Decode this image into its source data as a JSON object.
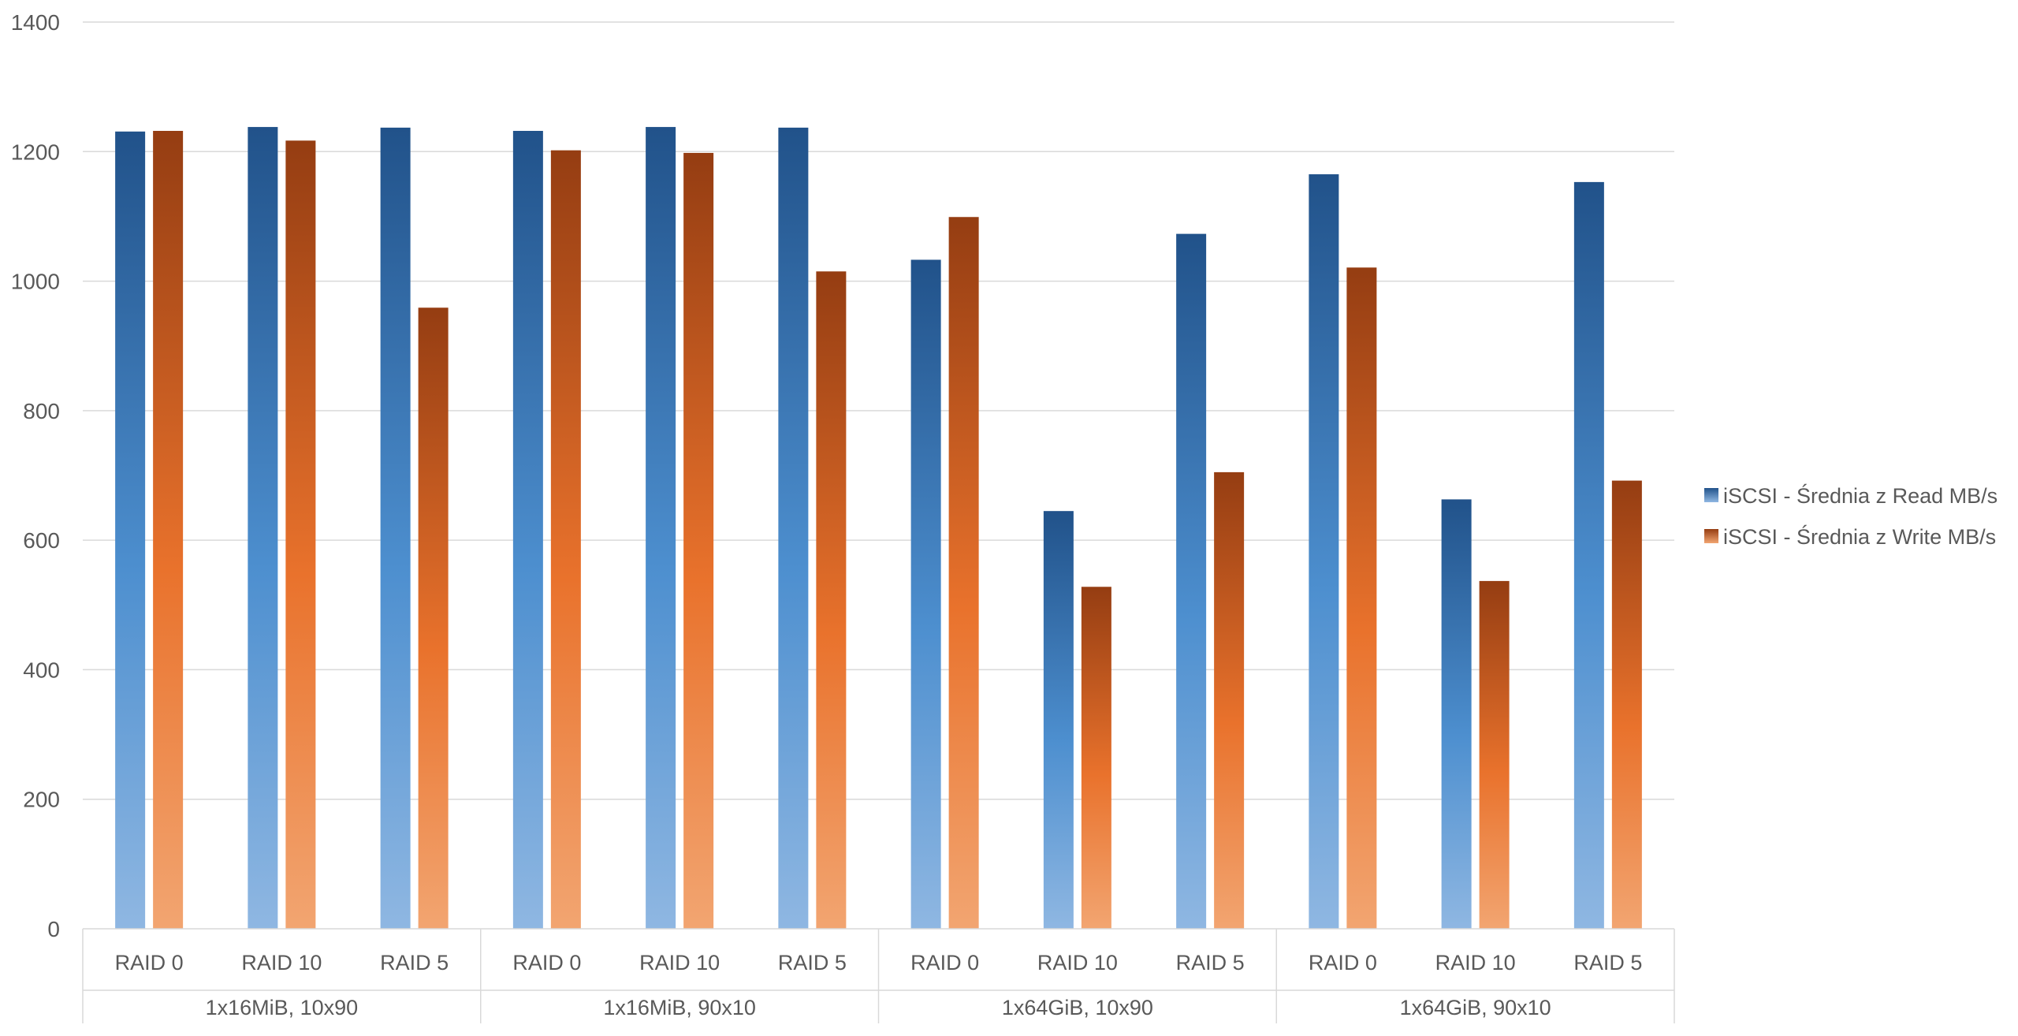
{
  "chart_data": {
    "type": "bar",
    "ylim": [
      0,
      1400
    ],
    "y_ticks": [
      0,
      200,
      400,
      600,
      800,
      1000,
      1200,
      1400
    ],
    "grid": true,
    "legend_position": "right",
    "categories": [
      "RAID 0",
      "RAID 10",
      "RAID 5",
      "RAID 0",
      "RAID 10",
      "RAID 5",
      "RAID 0",
      "RAID 10",
      "RAID 5",
      "RAID 0",
      "RAID 10",
      "RAID 5"
    ],
    "groups": [
      {
        "label": "1x16MiB, 10x90",
        "categories": [
          "RAID 0",
          "RAID 10",
          "RAID 5"
        ]
      },
      {
        "label": "1x16MiB, 90x10",
        "categories": [
          "RAID 0",
          "RAID 10",
          "RAID 5"
        ]
      },
      {
        "label": "1x64GiB, 10x90",
        "categories": [
          "RAID 0",
          "RAID 10",
          "RAID 5"
        ]
      },
      {
        "label": "1x64GiB, 90x10",
        "categories": [
          "RAID 0",
          "RAID 10",
          "RAID 5"
        ]
      }
    ],
    "series": [
      {
        "name": "iSCSI - Średnia z Read MB/s",
        "color_top": "#21528a",
        "color_mid": "#4d8fcf",
        "color_bottom": "#8fb7e2",
        "values": [
          1231,
          1238,
          1237,
          1232,
          1238,
          1237,
          1033,
          645,
          1073,
          1165,
          663,
          1153
        ]
      },
      {
        "name": "iSCSI - Średnia z Write MB/s",
        "color_top": "#953d12",
        "color_mid": "#e9722c",
        "color_bottom": "#f2a571",
        "values": [
          1232,
          1217,
          959,
          1202,
          1198,
          1015,
          1099,
          528,
          705,
          1021,
          537,
          692
        ]
      }
    ]
  }
}
